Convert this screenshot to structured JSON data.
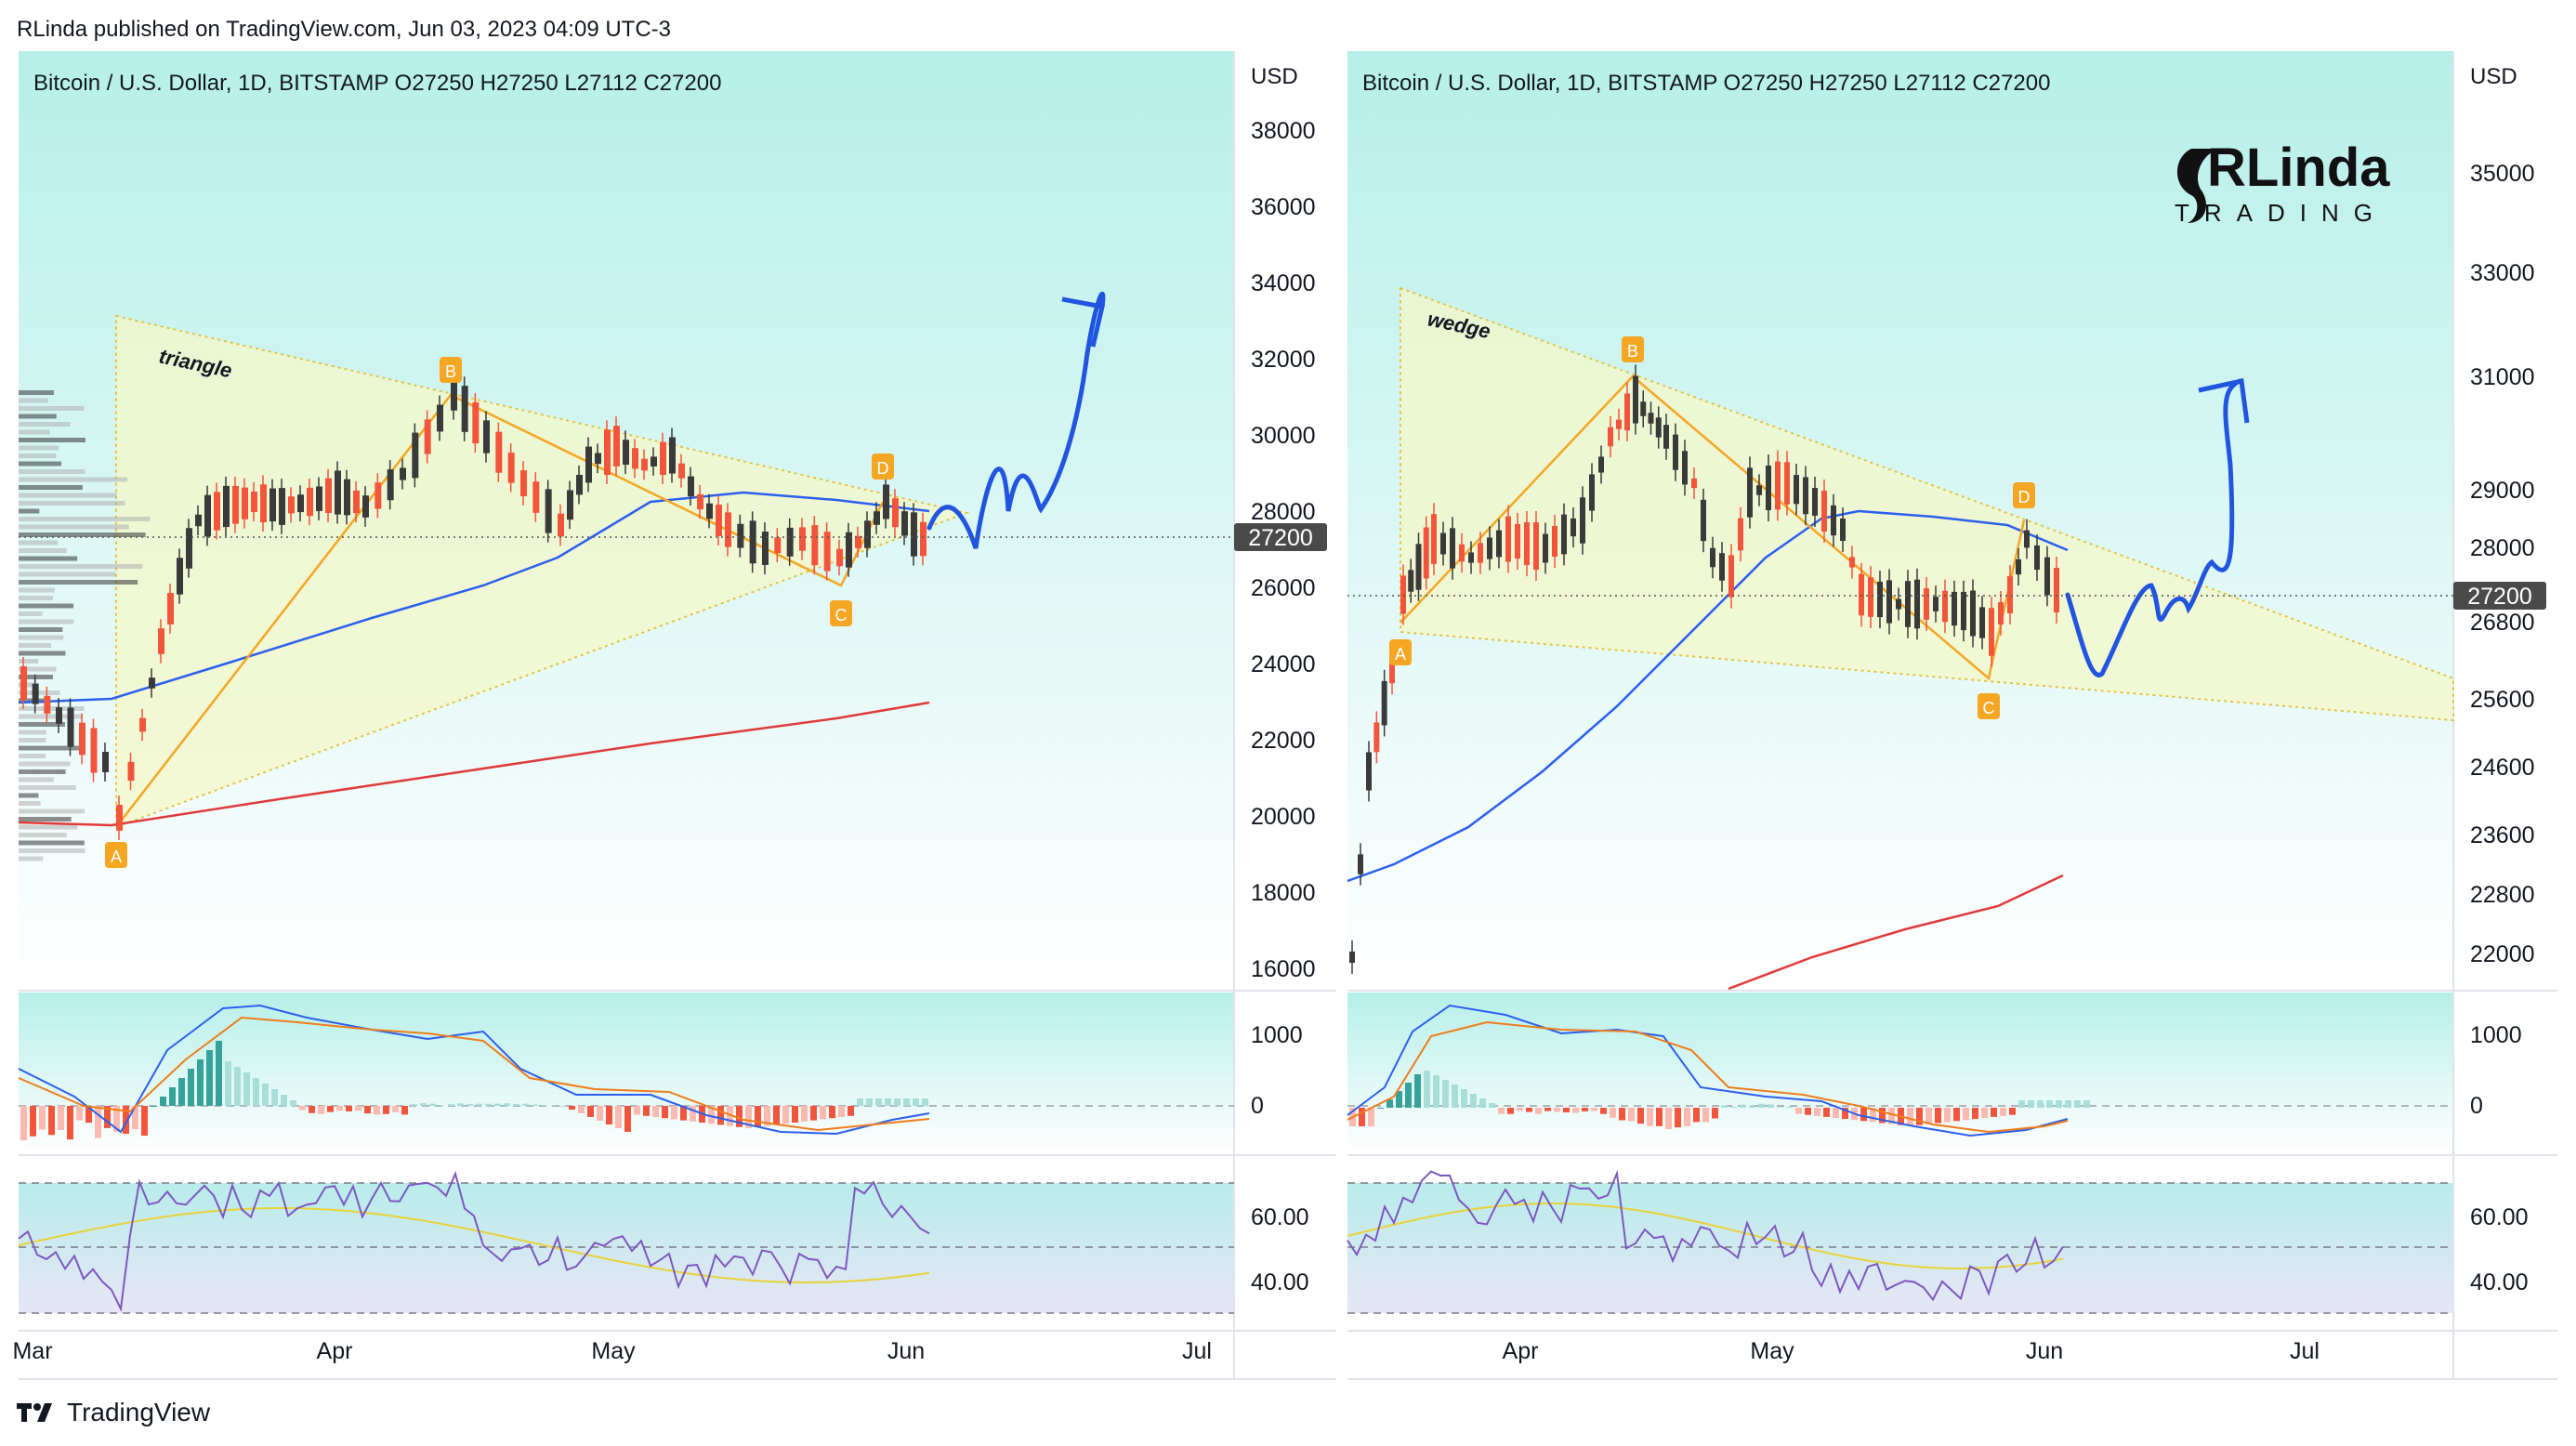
{
  "header": {
    "published": "RLinda published on TradingView.com, Jun 03, 2023 04:09 UTC-3"
  },
  "footer": {
    "brand": "TradingView"
  },
  "colors": {
    "bg_top": "#b8f0ea",
    "bg_bottom": "#ffffff",
    "bull": "#f2553b",
    "bear": "#3a3a3a",
    "ema_blue": "#2c5ff0",
    "ema_red": "#e03a3a",
    "pattern": "#f5a623",
    "projection": "#2155e0",
    "macd_pos": "#36a39a",
    "macd_pos_light": "#a8ded8",
    "macd_neg": "#f2553b",
    "macd_neg_light": "#fbb9b0",
    "rsi": "#7e57c2",
    "rsi_ma": "#e7d33a",
    "last_price_bg": "#4a4a4a"
  },
  "panels": [
    {
      "legend": "Bitcoin / U.S. Dollar, 1D, BITSTAMP  O27250  H27250  L27112  C27200",
      "currency": "USD",
      "last_price": "27200",
      "pattern_label": "triangle",
      "wave_labels": [
        "A",
        "B",
        "C",
        "D"
      ],
      "price_ticks": [
        "38000",
        "36000",
        "34000",
        "32000",
        "30000",
        "28000",
        "26000",
        "24000",
        "22000",
        "20000",
        "18000",
        "16000"
      ],
      "macd_ticks": [
        "1000",
        "0"
      ],
      "rsi_ticks": [
        "60.00",
        "40.00"
      ],
      "time_labels": [
        "Mar",
        "Apr",
        "May",
        "Jun",
        "Jul"
      ]
    },
    {
      "legend": "Bitcoin / U.S. Dollar, 1D, BITSTAMP  O27250  H27250  L27112  C27200",
      "currency": "USD",
      "last_price": "27200",
      "pattern_label": "wedge",
      "wave_labels": [
        "A",
        "B",
        "C",
        "D"
      ],
      "price_ticks": [
        "35000",
        "33000",
        "31000",
        "29000",
        "28000",
        "26800",
        "25600",
        "24600",
        "23600",
        "22800",
        "22000"
      ],
      "macd_ticks": [
        "1000",
        "0"
      ],
      "rsi_ticks": [
        "60.00",
        "40.00"
      ],
      "time_labels": [
        "Apr",
        "May",
        "Jun",
        "Jul"
      ]
    }
  ],
  "logo": {
    "line1": "RLinda",
    "line2": "TRADING"
  },
  "chart_data": [
    {
      "type": "candlestick",
      "title": "Bitcoin / U.S. Dollar, 1D, BITSTAMP",
      "ylim": [
        15000,
        40000
      ],
      "x": [
        "Mar 1",
        "Mar 8",
        "Mar 10",
        "Mar 13",
        "Mar 17",
        "Mar 20",
        "Mar 24",
        "Mar 31",
        "Apr 7",
        "Apr 14",
        "Apr 20",
        "Apr 26",
        "May 5",
        "May 12",
        "May 19",
        "May 25",
        "May 28",
        "Jun 2"
      ],
      "close": [
        23600,
        22000,
        20200,
        24100,
        27400,
        28000,
        27600,
        28400,
        28000,
        30400,
        28300,
        29200,
        28800,
        26900,
        26800,
        26500,
        28000,
        27200
      ],
      "ema_blue": [
        23200,
        23400,
        23800,
        24600,
        25600,
        26400,
        26900,
        27400,
        27800,
        28200,
        28400,
        28600,
        28500,
        28200,
        27900,
        27700,
        27700,
        27600
      ],
      "ema_red": [
        20200,
        20300,
        20500,
        20700,
        20900,
        21200,
        21400,
        21700,
        21900,
        22100,
        22300,
        22500,
        22700,
        22900,
        23000,
        23100,
        23200,
        23300
      ],
      "pattern_points": {
        "A": 20200,
        "B": 31000,
        "C": 26000,
        "D": 28500
      },
      "projection_target": 34000,
      "macd_range": [
        -500,
        1500
      ],
      "rsi_levels": [
        30,
        50,
        70
      ]
    },
    {
      "type": "candlestick",
      "title": "Bitcoin / U.S. Dollar, 1D, BITSTAMP",
      "ylim": [
        21000,
        36000
      ],
      "x": [
        "Mar 17",
        "Mar 24",
        "Mar 31",
        "Apr 7",
        "Apr 14",
        "Apr 20",
        "Apr 26",
        "May 5",
        "May 12",
        "May 19",
        "May 25",
        "May 28",
        "Jun 2"
      ],
      "close": [
        27400,
        27600,
        28400,
        28000,
        30400,
        28300,
        29200,
        28800,
        26900,
        26800,
        26500,
        28000,
        27200
      ],
      "pattern_points": {
        "A": 24600,
        "B": 31000,
        "C": 25800,
        "D": 28500
      },
      "projection_target": 31000
    }
  ]
}
